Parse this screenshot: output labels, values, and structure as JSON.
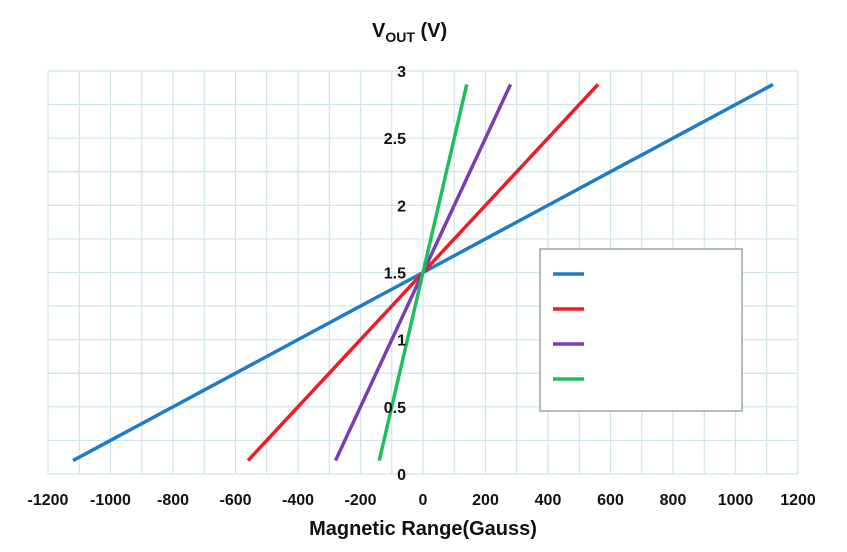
{
  "chart_data": {
    "type": "line",
    "title": "",
    "xlabel": "Magnetic Range(Gauss)",
    "ylabel": {
      "main": "V",
      "sub": "OUT",
      "unit": " (V)"
    },
    "xlim": [
      -1200,
      1200
    ],
    "ylim": [
      0,
      3
    ],
    "xticks": [
      -1200,
      -1000,
      -800,
      -600,
      -400,
      -200,
      0,
      200,
      400,
      600,
      800,
      1000,
      1200
    ],
    "yticks": [
      0,
      0.5,
      1,
      1.5,
      2,
      2.5,
      3
    ],
    "xtick_labels": [
      "-1200",
      "-1000",
      "-800",
      "-600",
      "-400",
      "-200",
      "0",
      "200",
      "400",
      "600",
      "800",
      "1000",
      "1200"
    ],
    "ytick_labels": [
      "0",
      "0.5",
      "1",
      "1.5",
      "2",
      "2.5",
      "3"
    ],
    "grid": true,
    "legend_position": "right",
    "series": [
      {
        "name": "",
        "color": "#1f7cc4",
        "x": [
          -1120,
          1120
        ],
        "y": [
          0.1,
          2.9
        ]
      },
      {
        "name": "",
        "color": "#ee1c24",
        "x": [
          -560,
          560
        ],
        "y": [
          0.1,
          2.9
        ]
      },
      {
        "name": "",
        "color": "#7a3db3",
        "x": [
          -280,
          280
        ],
        "y": [
          0.1,
          2.9
        ]
      },
      {
        "name": "",
        "color": "#1dbf5a",
        "x": [
          -140,
          140
        ],
        "y": [
          0.1,
          2.9
        ]
      }
    ]
  }
}
